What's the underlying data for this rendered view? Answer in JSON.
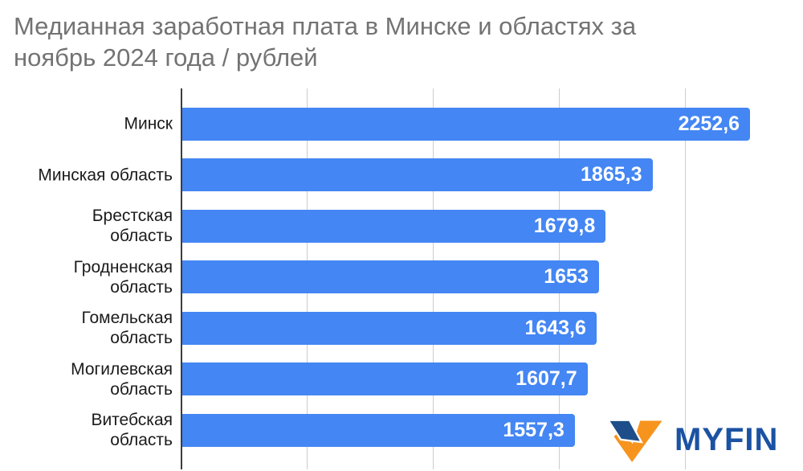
{
  "title": {
    "line1": "Медианная заработная плата в Минске и областях за",
    "line2": "ноябрь 2024 года / рублей"
  },
  "chart_data": {
    "type": "bar",
    "orientation": "horizontal",
    "title": "Медианная заработная плата в Минске и областях за ноябрь 2024 года / рублей",
    "categories": [
      "Минск",
      "Минская область",
      "Брестская область",
      "Гродненская область",
      "Гомельская область",
      "Могилевская область",
      "Витебская область"
    ],
    "values": [
      2252.6,
      1865.3,
      1679.8,
      1653,
      1643.6,
      1607.7,
      1557.3
    ],
    "value_labels": [
      "2252,6",
      "1865,3",
      "1679,8",
      "1653",
      "1643,6",
      "1607,7",
      "1557,3"
    ],
    "unit": "рублей",
    "xlim": [
      0,
      2469
    ],
    "gridlines": [
      500,
      1000,
      1500,
      2000
    ],
    "grid": true,
    "legend": "none",
    "bar_color": "#4486F3",
    "value_text_color": "#FFFFFF",
    "label_text_color": "#1B1B1B",
    "title_color": "#737373",
    "gridline_color": "#CCCCCC",
    "axis_color": "#3D3D3D"
  },
  "branding": {
    "logo_text": "MYFIN",
    "logo_icon": "v-checkmark-icon",
    "logo_navy": "#1D4E89",
    "logo_orange": "#F7941E",
    "logo_text_color": "#1B52A3"
  }
}
